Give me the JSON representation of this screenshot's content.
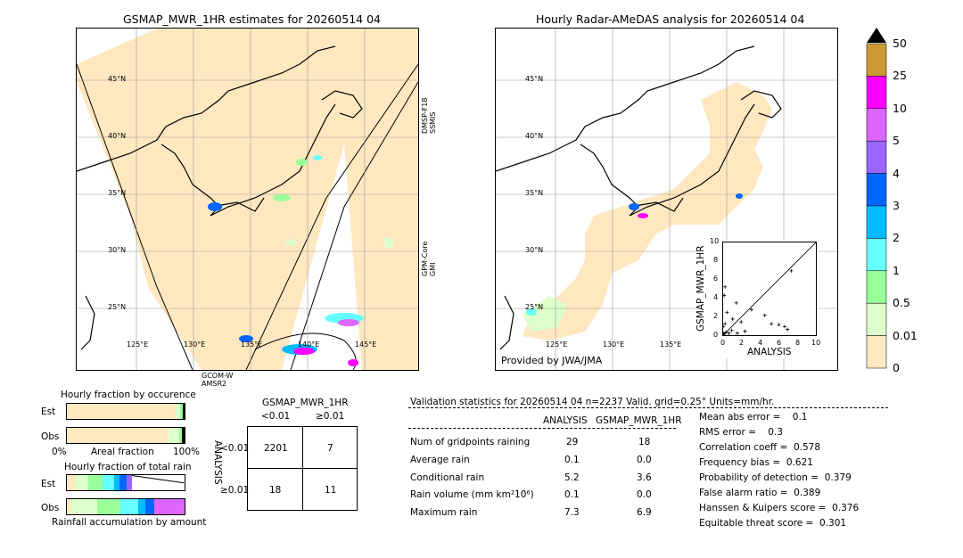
{
  "left_map": {
    "title": "GSMAP_MWR_1HR estimates for 20260514 04",
    "lat_labels": [
      "45°N",
      "40°N",
      "35°N",
      "30°N",
      "25°N"
    ],
    "lon_labels": [
      "125°E",
      "130°E",
      "135°E",
      "140°E",
      "145°E"
    ],
    "swath_labels": {
      "right_top": "DMSP-F18\nSSMIS",
      "right_mid": "GPM-Core\nGMI",
      "bottom_line1": "GCOM-W",
      "bottom_line2": "AMSR2"
    }
  },
  "right_map": {
    "title": "Hourly Radar-AMeDAS analysis for 20260514 04",
    "lat_labels": [
      "45°N",
      "40°N",
      "35°N",
      "30°N",
      "25°N"
    ],
    "lon_labels": [
      "125°E",
      "130°E",
      "135°E"
    ],
    "credit": "Provided by JWA/JMA"
  },
  "scatter_inset": {
    "xlabel": "ANALYSIS",
    "ylabel": "GSMAP_MWR_1HR",
    "xticks": [
      "0",
      "2",
      "4",
      "6",
      "8",
      "10"
    ],
    "yticks": [
      "0",
      "2",
      "4",
      "6",
      "8",
      "10"
    ]
  },
  "colorbar": {
    "labels": [
      "50",
      "25",
      "10",
      "5",
      "4",
      "3",
      "2",
      "1",
      "0.5",
      "0.01",
      "0"
    ],
    "colors": [
      "#cc9933",
      "#ff00ff",
      "#dd66ff",
      "#9966ff",
      "#0066ff",
      "#00bbff",
      "#66ffff",
      "#99ff99",
      "#ddffcc",
      "#ffe8c0"
    ]
  },
  "fraction_panel": {
    "title1": "Hourly fraction by occurence",
    "title2": "Hourly fraction of total rain",
    "est_label": "Est",
    "obs_label": "Obs",
    "axis_left": "0%",
    "axis_mid": "Areal fraction",
    "axis_right": "100%",
    "bottom_label": "Rainfall accumulation by amount"
  },
  "contingency": {
    "title": "GSMAP_MWR_1HR",
    "col1": "<0.01",
    "col2": "≥0.01",
    "row_axis": "ANALYSIS",
    "row1": "<0.01",
    "row2": "≥0.01",
    "v11": "2201",
    "v12": "7",
    "v21": "18",
    "v22": "11"
  },
  "validation": {
    "header": "Validation statistics for 20260514 04  n=2237 Valid. grid=0.25° Units=mm/hr.",
    "col_analysis": "ANALYSIS",
    "col_gsmap": "GSMAP_MWR_1HR",
    "rows": [
      {
        "label": "Num of gridpoints raining",
        "a": "29",
        "g": "18"
      },
      {
        "label": "Average rain",
        "a": "0.1",
        "g": "0.0"
      },
      {
        "label": "Conditional rain",
        "a": "5.2",
        "g": "3.6"
      },
      {
        "label": "Rain volume (mm km²10⁶)",
        "a": "0.1",
        "g": "0.0"
      },
      {
        "label": "Maximum rain",
        "a": "7.3",
        "g": "6.9"
      }
    ],
    "scores": [
      "Mean abs error =    0.1",
      "RMS error =    0.3",
      "Correlation coeff =  0.578",
      "Frequency bias =  0.621",
      "Probability of detection =  0.379",
      "False alarm ratio =  0.389",
      "Hanssen & Kuipers score =  0.376",
      "Equitable threat score =  0.301"
    ]
  },
  "chart_data": {
    "type": "scatter",
    "xlabel": "ANALYSIS",
    "ylabel": "GSMAP_MWR_1HR",
    "xlim": [
      0,
      10
    ],
    "ylim": [
      0,
      10
    ],
    "points": [
      [
        7.3,
        6.9
      ],
      [
        0.3,
        5.2
      ],
      [
        0.2,
        4.3
      ],
      [
        1.5,
        3.5
      ],
      [
        3.1,
        2.8
      ],
      [
        4.5,
        2.2
      ],
      [
        1.1,
        1.8
      ],
      [
        2.0,
        1.5
      ],
      [
        0.5,
        2.5
      ],
      [
        6.0,
        1.2
      ],
      [
        6.6,
        1.0
      ],
      [
        6.9,
        0.7
      ],
      [
        1.0,
        0.6
      ],
      [
        0.4,
        0.4
      ],
      [
        0.2,
        0.2
      ],
      [
        0.1,
        0.3
      ],
      [
        0.7,
        0.3
      ],
      [
        2.4,
        0.5
      ],
      [
        5.2,
        1.3
      ],
      [
        0.1,
        1.0
      ],
      [
        0.3,
        1.3
      ],
      [
        1.6,
        0.3
      ]
    ]
  }
}
